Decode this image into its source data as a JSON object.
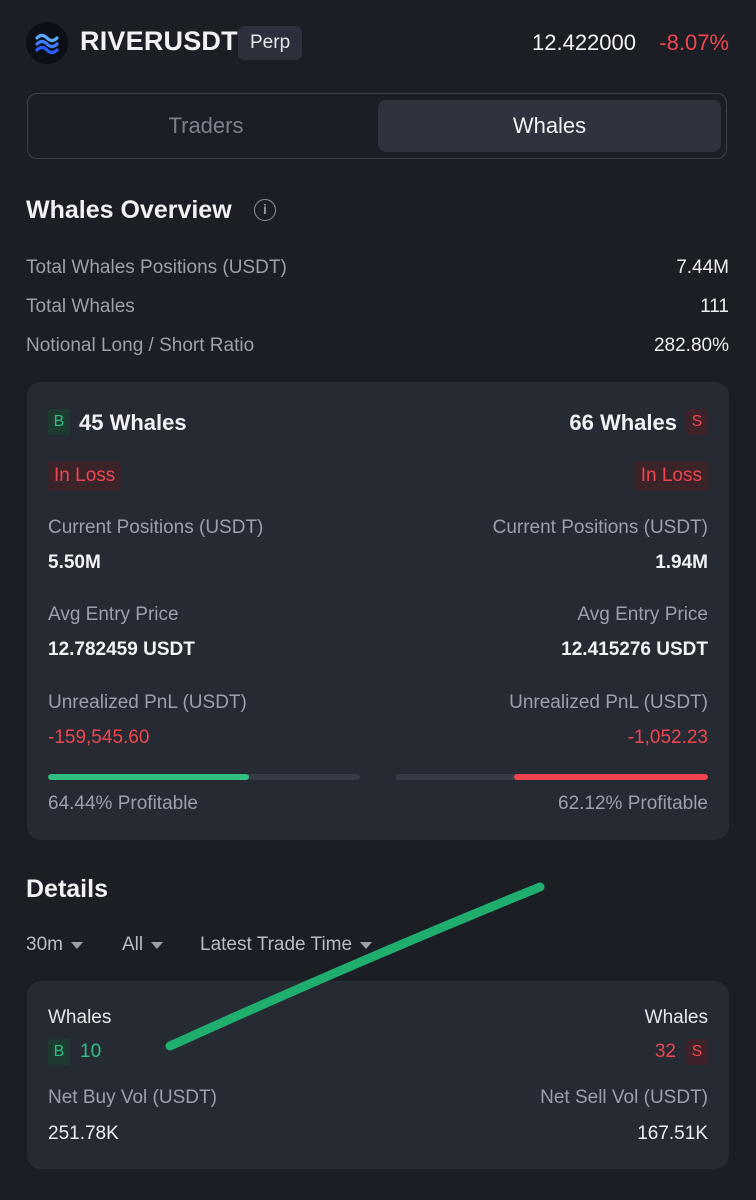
{
  "header": {
    "symbol": "RIVERUSDT",
    "badge": "Perp",
    "price": "12.422000",
    "change": "-8.07%"
  },
  "tabs": [
    {
      "label": "Traders",
      "active": false
    },
    {
      "label": "Whales",
      "active": true
    }
  ],
  "overview": {
    "title": "Whales Overview",
    "info_glyph": "i",
    "stats": [
      {
        "label": "Total Whales Positions (USDT)",
        "value": "7.44M"
      },
      {
        "label": "Total Whales",
        "value": "111"
      },
      {
        "label": "Notional Long / Short Ratio",
        "value": "282.80%"
      }
    ]
  },
  "summary": {
    "long": {
      "badge": "B",
      "count": "45 Whales",
      "status": "In Loss",
      "current_label": "Current Positions (USDT)",
      "current_value": "5.50M",
      "entry_label": "Avg Entry Price",
      "entry_value": "12.782459 USDT",
      "pnl_label": "Unrealized PnL (USDT)",
      "pnl_value": "-159,545.60",
      "profitable_text": "64.44% Profitable",
      "profitable_pct": 64.44
    },
    "short": {
      "badge": "S",
      "count": "66 Whales",
      "status": "In Loss",
      "current_label": "Current Positions (USDT)",
      "current_value": "1.94M",
      "entry_label": "Avg Entry Price",
      "entry_value": "12.415276 USDT",
      "pnl_label": "Unrealized PnL (USDT)",
      "pnl_value": "-1,052.23",
      "profitable_text": "62.12% Profitable",
      "profitable_pct": 62.12
    }
  },
  "details": {
    "title": "Details",
    "filters": [
      "30m",
      "All",
      "Latest Trade Time"
    ],
    "buy": {
      "whales_label": "Whales",
      "badge": "B",
      "count": "10",
      "vol_label": "Net Buy Vol (USDT)",
      "vol_value": "251.78K"
    },
    "sell": {
      "whales_label": "Whales",
      "badge": "S",
      "count": "32",
      "vol_label": "Net Sell Vol (USDT)",
      "vol_value": "167.51K"
    }
  },
  "colors": {
    "background": "#1b1e25",
    "card": "#262a33",
    "buy_green": "#2fbf80",
    "sell_red": "#f0454f",
    "annotation_stroke": "#1fae6e"
  }
}
